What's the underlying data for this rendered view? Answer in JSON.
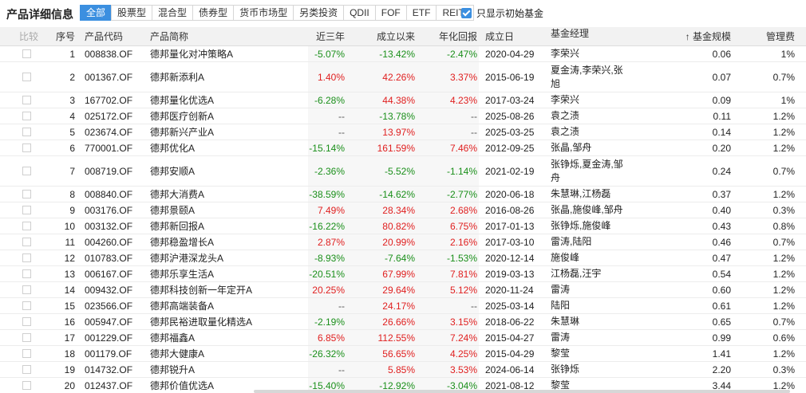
{
  "title": "产品详细信息",
  "tabs": [
    {
      "label": "全部",
      "active": true
    },
    {
      "label": "股票型",
      "active": false
    },
    {
      "label": "混合型",
      "active": false
    },
    {
      "label": "债券型",
      "active": false
    },
    {
      "label": "货币市场型",
      "active": false
    },
    {
      "label": "另类投资",
      "active": false
    },
    {
      "label": "QDII",
      "active": false
    },
    {
      "label": "FOF",
      "active": false
    },
    {
      "label": "ETF",
      "active": false
    },
    {
      "label": "REITs",
      "active": false
    }
  ],
  "toggle": {
    "label": "只显示初始基金",
    "checked": true
  },
  "table": {
    "headers": {
      "compare": "比较",
      "index": "序号",
      "code": "产品代码",
      "name": "产品简称",
      "return_3y": "近三年",
      "since_inception": "成立以来",
      "annualized": "年化回报",
      "inception_date": "成立日",
      "manager": "基金经理",
      "size": "↑ 基金规模",
      "fee": "管理费"
    },
    "rows": [
      {
        "index": "1",
        "code": "008838.OF",
        "name": "德邦量化对冲策略A",
        "r3": "-5.07%",
        "since": "-13.42%",
        "ann": "-2.47%",
        "date": "2020-04-29",
        "manager": "李荣兴",
        "size": "0.06",
        "fee": "1%"
      },
      {
        "index": "2",
        "code": "001367.OF",
        "name": "德邦新添利A",
        "r3": "1.40%",
        "since": "42.26%",
        "ann": "3.37%",
        "date": "2015-06-19",
        "manager": "夏金涛,李荣兴,张旭",
        "size": "0.07",
        "fee": "0.7%"
      },
      {
        "index": "3",
        "code": "167702.OF",
        "name": "德邦量化优选A",
        "r3": "-6.28%",
        "since": "44.38%",
        "ann": "4.23%",
        "date": "2017-03-24",
        "manager": "李荣兴",
        "size": "0.09",
        "fee": "1%"
      },
      {
        "index": "4",
        "code": "025172.OF",
        "name": "德邦医疗创新A",
        "r3": "--",
        "since": "-13.78%",
        "ann": "--",
        "date": "2025-08-26",
        "manager": "袁之渍",
        "size": "0.11",
        "fee": "1.2%"
      },
      {
        "index": "5",
        "code": "023674.OF",
        "name": "德邦新兴产业A",
        "r3": "--",
        "since": "13.97%",
        "ann": "--",
        "date": "2025-03-25",
        "manager": "袁之渍",
        "size": "0.14",
        "fee": "1.2%"
      },
      {
        "index": "6",
        "code": "770001.OF",
        "name": "德邦优化A",
        "r3": "-15.14%",
        "since": "161.59%",
        "ann": "7.46%",
        "date": "2012-09-25",
        "manager": "张晶,邹舟",
        "size": "0.20",
        "fee": "1.2%"
      },
      {
        "index": "7",
        "code": "008719.OF",
        "name": "德邦安顺A",
        "r3": "-2.36%",
        "since": "-5.52%",
        "ann": "-1.14%",
        "date": "2021-02-19",
        "manager": "张铮烁,夏金涛,邹舟",
        "size": "0.24",
        "fee": "0.7%"
      },
      {
        "index": "8",
        "code": "008840.OF",
        "name": "德邦大消费A",
        "r3": "-38.59%",
        "since": "-14.62%",
        "ann": "-2.77%",
        "date": "2020-06-18",
        "manager": "朱慧琳,江杨磊",
        "size": "0.37",
        "fee": "1.2%"
      },
      {
        "index": "9",
        "code": "003176.OF",
        "name": "德邦景颐A",
        "r3": "7.49%",
        "since": "28.34%",
        "ann": "2.68%",
        "date": "2016-08-26",
        "manager": "张晶,施俊峰,邹舟",
        "size": "0.40",
        "fee": "0.3%"
      },
      {
        "index": "10",
        "code": "003132.OF",
        "name": "德邦新回报A",
        "r3": "-16.22%",
        "since": "80.82%",
        "ann": "6.75%",
        "date": "2017-01-13",
        "manager": "张铮烁,施俊峰",
        "size": "0.43",
        "fee": "0.8%"
      },
      {
        "index": "11",
        "code": "004260.OF",
        "name": "德邦稳盈增长A",
        "r3": "2.87%",
        "since": "20.99%",
        "ann": "2.16%",
        "date": "2017-03-10",
        "manager": "雷涛,陆阳",
        "size": "0.46",
        "fee": "0.7%"
      },
      {
        "index": "12",
        "code": "010783.OF",
        "name": "德邦沪港深龙头A",
        "r3": "-8.93%",
        "since": "-7.64%",
        "ann": "-1.53%",
        "date": "2020-12-14",
        "manager": "施俊峰",
        "size": "0.47",
        "fee": "1.2%"
      },
      {
        "index": "13",
        "code": "006167.OF",
        "name": "德邦乐享生活A",
        "r3": "-20.51%",
        "since": "67.99%",
        "ann": "7.81%",
        "date": "2019-03-13",
        "manager": "江杨磊,汪宇",
        "size": "0.54",
        "fee": "1.2%"
      },
      {
        "index": "14",
        "code": "009432.OF",
        "name": "德邦科技创新一年定开A",
        "r3": "20.25%",
        "since": "29.64%",
        "ann": "5.12%",
        "date": "2020-11-24",
        "manager": "雷涛",
        "size": "0.60",
        "fee": "1.2%"
      },
      {
        "index": "15",
        "code": "023566.OF",
        "name": "德邦高端装备A",
        "r3": "--",
        "since": "24.17%",
        "ann": "--",
        "date": "2025-03-14",
        "manager": "陆阳",
        "size": "0.61",
        "fee": "1.2%"
      },
      {
        "index": "16",
        "code": "005947.OF",
        "name": "德邦民裕进取量化精选A",
        "r3": "-2.19%",
        "since": "26.66%",
        "ann": "3.15%",
        "date": "2018-06-22",
        "manager": "朱慧琳",
        "size": "0.65",
        "fee": "0.7%"
      },
      {
        "index": "17",
        "code": "001229.OF",
        "name": "德邦福鑫A",
        "r3": "6.85%",
        "since": "112.55%",
        "ann": "7.24%",
        "date": "2015-04-27",
        "manager": "雷涛",
        "size": "0.99",
        "fee": "0.6%"
      },
      {
        "index": "18",
        "code": "001179.OF",
        "name": "德邦大健康A",
        "r3": "-26.32%",
        "since": "56.65%",
        "ann": "4.25%",
        "date": "2015-04-29",
        "manager": "黎莹",
        "size": "1.41",
        "fee": "1.2%"
      },
      {
        "index": "19",
        "code": "014732.OF",
        "name": "德邦锐升A",
        "r3": "--",
        "since": "5.85%",
        "ann": "3.53%",
        "date": "2024-06-14",
        "manager": "张铮烁",
        "size": "2.20",
        "fee": "0.3%"
      },
      {
        "index": "20",
        "code": "012437.OF",
        "name": "德邦价值优选A",
        "r3": "-15.40%",
        "since": "-12.92%",
        "ann": "-3.04%",
        "date": "2021-08-12",
        "manager": "黎莹",
        "size": "3.44",
        "fee": "1.2%"
      }
    ]
  },
  "colors": {
    "accent": "#3b8fe0",
    "positive": "#e02020",
    "negative": "#1a8f1a"
  }
}
